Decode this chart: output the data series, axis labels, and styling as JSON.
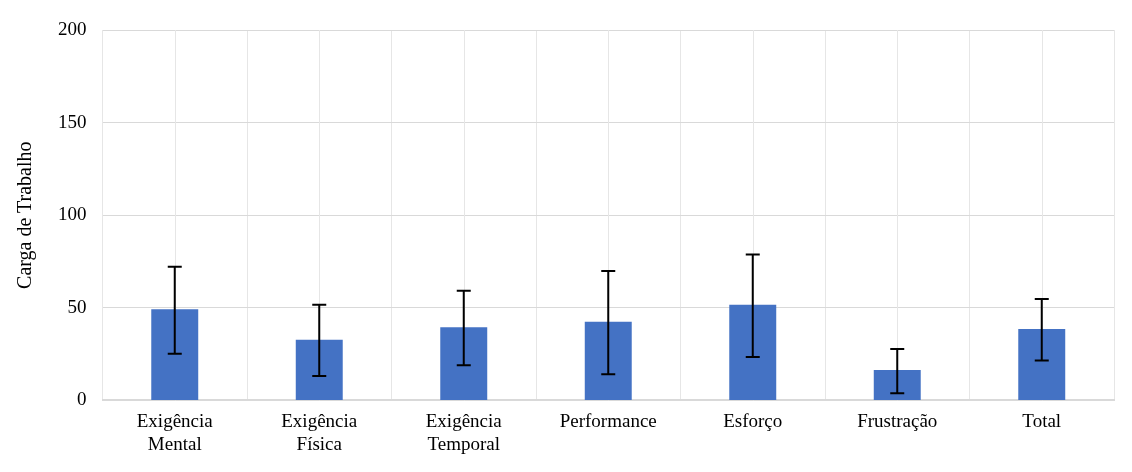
{
  "chart_data": {
    "type": "bar",
    "ylabel": "Carga de Trabalho",
    "categories": [
      [
        "Exigência",
        "Mental"
      ],
      [
        "Exigência",
        "Física"
      ],
      [
        "Exigência",
        "Temporal"
      ],
      "Performance",
      "Esforço",
      "Frustração",
      "Total"
    ],
    "values": [
      49.2,
      32.7,
      39.5,
      42.5,
      51.7,
      16.4,
      38.5
    ],
    "errors": [
      [
        25.2,
        72.2
      ],
      [
        13.2,
        51.7
      ],
      [
        19.0,
        59.2
      ],
      [
        14.1,
        69.9
      ],
      [
        23.5,
        78.8
      ],
      [
        3.9,
        27.8
      ],
      [
        21.6,
        54.7
      ]
    ],
    "color": "#4472c4",
    "ylim": [
      0,
      200
    ],
    "yticks": [
      0,
      50,
      100,
      150,
      200
    ],
    "grid": true
  }
}
